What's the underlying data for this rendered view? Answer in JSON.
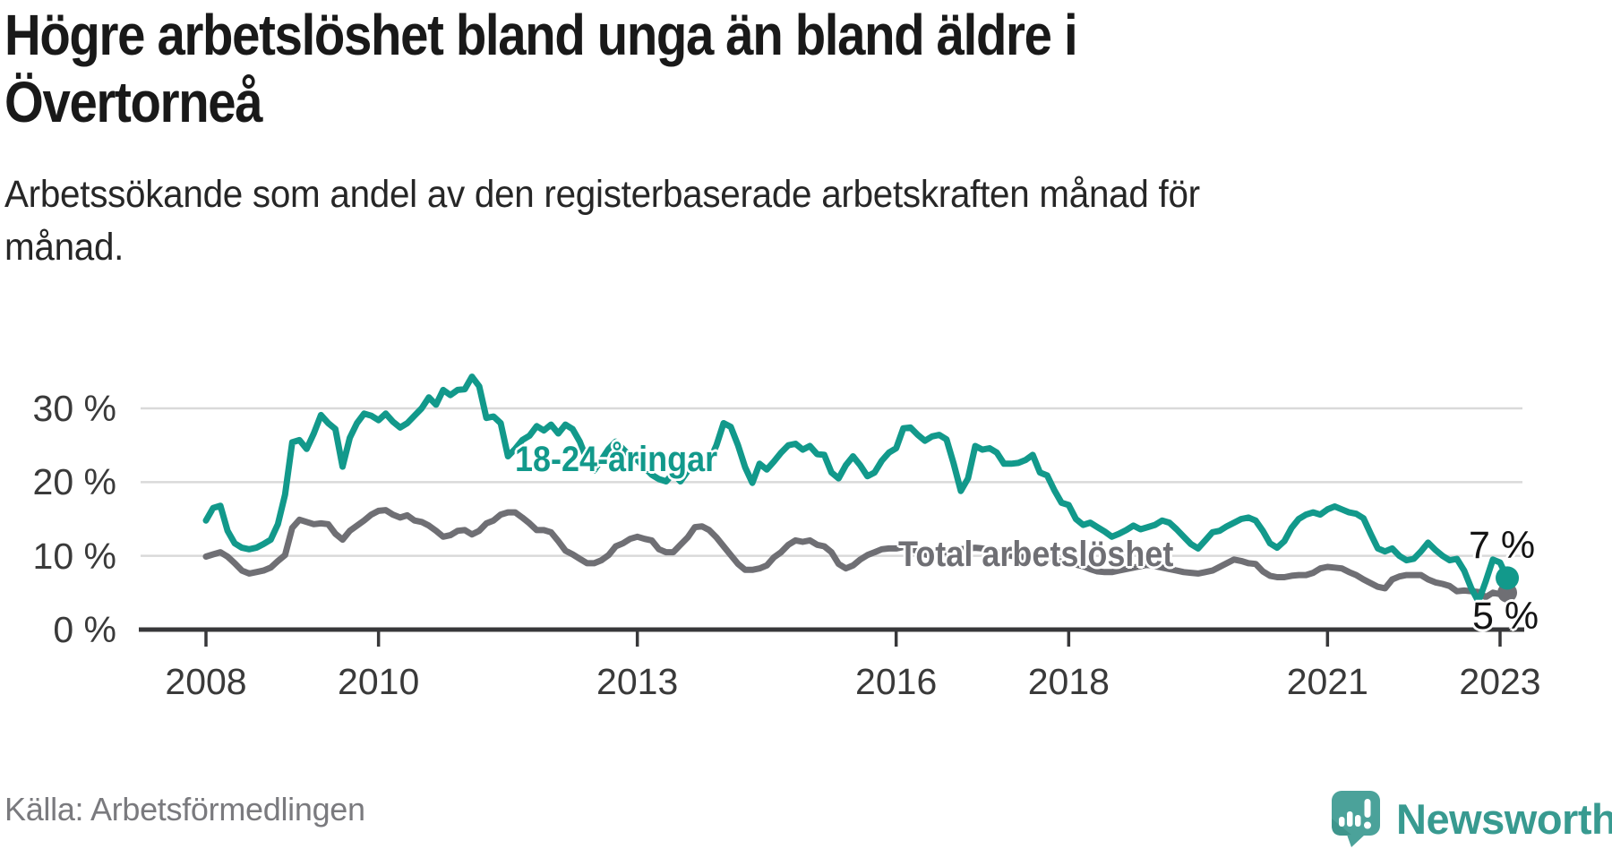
{
  "header": {
    "title": "Högre arbetslöshet bland unga än bland äldre i\nÖvertorneå",
    "subtitle": "Arbetssökande som andel av den registerbaserade arbetskraften månad för\nmånad."
  },
  "footer": {
    "source": "Källa: Arbetsförmedlingen",
    "brand": "Newsworthy"
  },
  "colors": {
    "youth_line": "#12998b",
    "total_line": "#6f6f74",
    "grid": "#d9d9d9",
    "axis": "#38383a",
    "tick_text": "#3a3a3a",
    "end_label_text": "#141414",
    "brand": "#389a90",
    "title_text": "#191919",
    "source_text": "#7a7a7e"
  },
  "chart_data": {
    "type": "line",
    "title": "Högre arbetslöshet bland unga än bland äldre i Övertorneå",
    "subtitle": "Arbetssökande som andel av den registerbaserade arbetskraften månad för månad.",
    "x_unit": "month",
    "x_start": "2008-01",
    "x_end": "2023-02",
    "grid": true,
    "legend_position": "inline-labels",
    "ylim": [
      0,
      36
    ],
    "y_ticks": [
      {
        "value": 0,
        "label": "0 %"
      },
      {
        "value": 10,
        "label": "10 %"
      },
      {
        "value": 20,
        "label": "20 %"
      },
      {
        "value": 30,
        "label": "30 %"
      }
    ],
    "x_ticks": [
      {
        "year": 2008,
        "label": "2008"
      },
      {
        "year": 2010,
        "label": "2010"
      },
      {
        "year": 2013,
        "label": "2013"
      },
      {
        "year": 2016,
        "label": "2016"
      },
      {
        "year": 2018,
        "label": "2018"
      },
      {
        "year": 2021,
        "label": "2021"
      },
      {
        "year": 2023,
        "label": "2023"
      }
    ],
    "series": [
      {
        "name": "18-24-åringar",
        "color": "#12998b",
        "end_label": "7 %",
        "end_value": 7,
        "values": [
          14.8,
          16.5,
          16.8,
          13.4,
          11.7,
          11.1,
          10.9,
          11.1,
          11.6,
          12.2,
          14.3,
          18.3,
          25.4,
          25.7,
          24.5,
          26.6,
          29.1,
          28.0,
          27.2,
          22.1,
          26.0,
          28.0,
          29.3,
          29.0,
          28.4,
          29.3,
          28.2,
          27.4,
          28.0,
          29.0,
          30.0,
          31.5,
          30.5,
          32.5,
          31.8,
          32.5,
          32.6,
          34.3,
          33.0,
          28.7,
          28.9,
          28.0,
          23.5,
          24.5,
          25.7,
          26.3,
          27.6,
          27.0,
          27.8,
          26.6,
          27.8,
          27.2,
          25.5,
          23.0,
          21.6,
          23.0,
          24.5,
          25.5,
          24.5,
          23.5,
          23.0,
          22.0,
          21.0,
          20.4,
          20.1,
          21.2,
          20.1,
          21.5,
          22.3,
          22.5,
          22.8,
          25.0,
          28.0,
          27.5,
          25.0,
          22.0,
          19.9,
          22.5,
          21.7,
          22.8,
          24.0,
          25.0,
          25.2,
          24.4,
          24.9,
          23.8,
          23.7,
          21.3,
          20.5,
          22.3,
          23.5,
          22.3,
          20.8,
          21.3,
          22.9,
          24.0,
          24.6,
          27.3,
          27.4,
          26.4,
          25.6,
          26.2,
          26.4,
          25.8,
          22.5,
          18.8,
          20.5,
          24.9,
          24.4,
          24.6,
          24.0,
          22.5,
          22.5,
          22.6,
          23.0,
          23.7,
          21.3,
          20.9,
          18.9,
          17.2,
          16.9,
          15.0,
          14.2,
          14.5,
          13.9,
          13.3,
          12.6,
          13.0,
          13.5,
          14.1,
          13.6,
          13.9,
          14.2,
          14.8,
          14.5,
          13.6,
          12.6,
          11.6,
          11.0,
          12.1,
          13.2,
          13.4,
          14.0,
          14.5,
          15.0,
          15.2,
          14.8,
          13.4,
          11.7,
          11.1,
          12.0,
          13.8,
          15.0,
          15.6,
          15.9,
          15.6,
          16.3,
          16.7,
          16.3,
          15.9,
          15.7,
          15.1,
          13.0,
          11.0,
          10.6,
          11.0,
          10.0,
          9.4,
          9.6,
          10.6,
          11.8,
          10.8,
          10.0,
          9.4,
          9.6,
          8.0,
          5.6,
          3.8,
          6.5,
          9.5,
          9.1,
          7.0
        ]
      },
      {
        "name": "Total arbetslöshet",
        "color": "#6f6f74",
        "end_label": "5 %",
        "end_value": 5,
        "values": [
          9.9,
          10.2,
          10.5,
          9.9,
          9.0,
          8.0,
          7.6,
          7.8,
          8.0,
          8.4,
          9.3,
          10.1,
          13.8,
          14.9,
          14.6,
          14.3,
          14.4,
          14.3,
          13.0,
          12.2,
          13.4,
          14.1,
          14.8,
          15.6,
          16.1,
          16.2,
          15.6,
          15.2,
          15.5,
          14.8,
          14.6,
          14.1,
          13.4,
          12.6,
          12.8,
          13.4,
          13.5,
          12.9,
          13.4,
          14.4,
          14.8,
          15.6,
          15.9,
          15.9,
          15.2,
          14.4,
          13.5,
          13.5,
          13.2,
          12.0,
          10.7,
          10.2,
          9.6,
          9.0,
          9.0,
          9.4,
          10.1,
          11.3,
          11.7,
          12.3,
          12.6,
          12.3,
          12.1,
          10.9,
          10.5,
          10.5,
          11.5,
          12.5,
          13.9,
          14.0,
          13.5,
          12.5,
          11.3,
          10.1,
          8.9,
          8.1,
          8.1,
          8.3,
          8.7,
          9.8,
          10.5,
          11.5,
          12.1,
          11.9,
          12.1,
          11.5,
          11.3,
          10.5,
          8.9,
          8.3,
          8.7,
          9.5,
          10.1,
          10.5,
          10.9,
          11.0,
          11.0,
          11.2,
          11.0,
          10.6,
          10.2,
          10.0,
          10.2,
          10.6,
          10.8,
          10.9,
          11.0,
          11.1,
          11.0,
          10.8,
          10.5,
          10.2,
          10.0,
          9.9,
          9.8,
          9.9,
          9.8,
          9.6,
          9.4,
          9.2,
          9.0,
          8.8,
          8.6,
          8.2,
          7.9,
          7.8,
          7.8,
          8.0,
          8.2,
          8.4,
          8.6,
          8.8,
          8.6,
          8.4,
          8.2,
          8.0,
          7.8,
          7.7,
          7.6,
          7.8,
          8.0,
          8.5,
          9.0,
          9.5,
          9.3,
          9.0,
          8.9,
          7.9,
          7.3,
          7.1,
          7.1,
          7.3,
          7.4,
          7.4,
          7.7,
          8.3,
          8.5,
          8.4,
          8.3,
          7.8,
          7.4,
          6.8,
          6.3,
          5.8,
          5.6,
          6.8,
          7.2,
          7.4,
          7.4,
          7.4,
          6.8,
          6.4,
          6.2,
          5.9,
          5.2,
          5.3,
          5.2,
          5.1,
          4.4,
          5.0,
          4.8,
          5.0
        ]
      }
    ]
  }
}
